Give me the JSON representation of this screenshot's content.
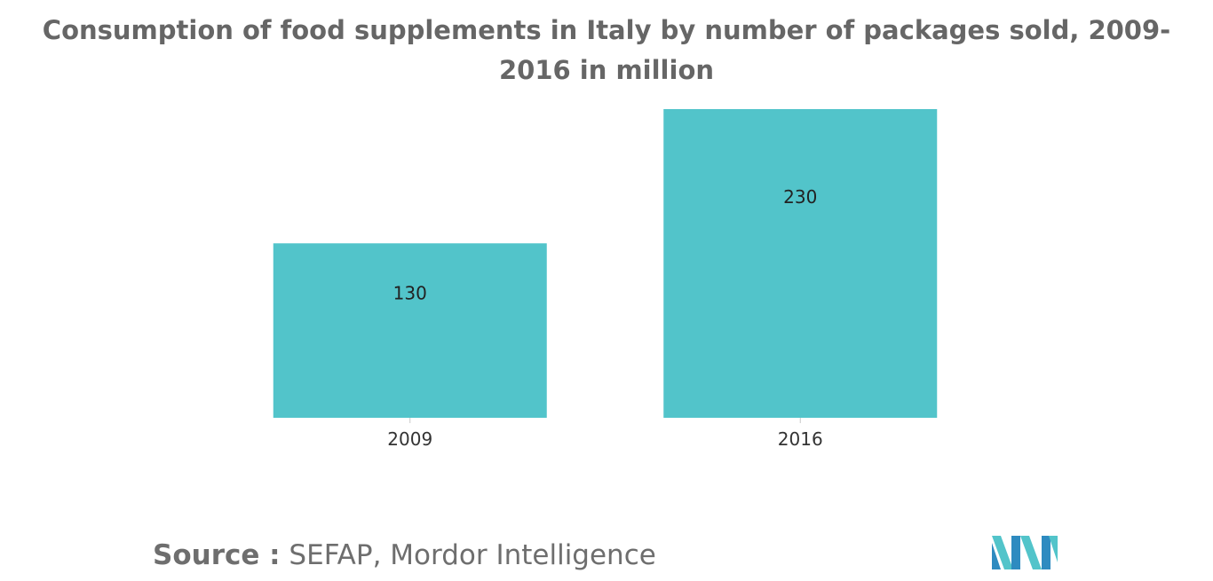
{
  "chart_data": {
    "type": "bar",
    "title": "Consumption of food supplements in Italy by number of packages sold, 2009-2016 in million",
    "categories": [
      "2009",
      "2016"
    ],
    "values": [
      130,
      230
    ],
    "data_labels": [
      "130",
      "230"
    ],
    "xlabel": "",
    "ylabel": "",
    "ylim": [
      0,
      230
    ],
    "grid": false,
    "legend": "none",
    "bar_color": "#52c4ca"
  },
  "source": {
    "label": "Source :",
    "text": " SEFAP, Mordor Intelligence"
  },
  "logo": {
    "icon": "mordor-intelligence-logo-icon",
    "colors": [
      "#52c4ca",
      "#2e8bc0"
    ]
  }
}
